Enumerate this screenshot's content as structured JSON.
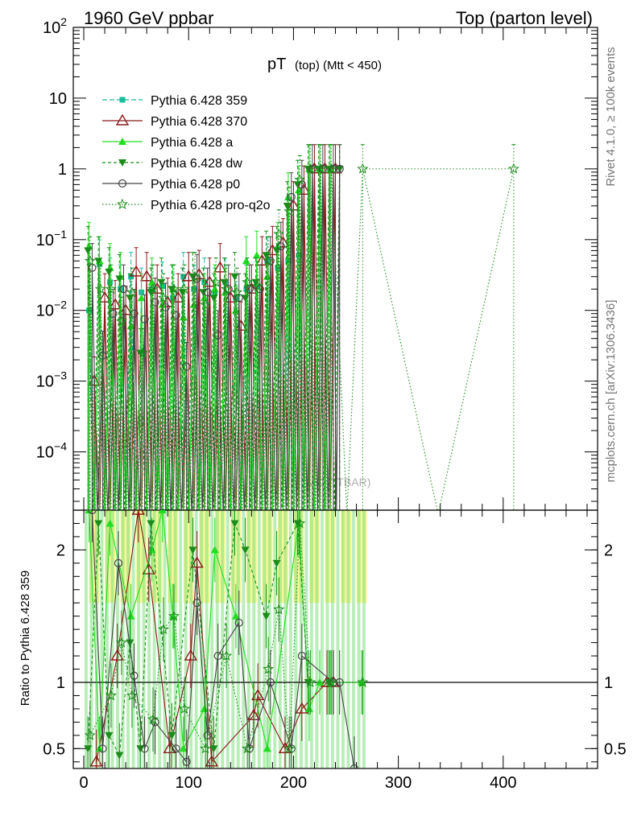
{
  "header": {
    "left": "1960 GeV ppbar",
    "right": "Top (parton level)"
  },
  "side_labels": {
    "rivet": "Rivet 4.1.0, ≥ 100k events",
    "mcplots": "mcplots.cern.ch [arXiv:1306.3436]"
  },
  "watermark": "(MC_TTBAR)",
  "chart_data": {
    "type": "line",
    "title": "pT (top) (Mtt < 450)",
    "title_main": "pT",
    "title_sub": "(top) (Mtt < 450)",
    "xlim": [
      -10,
      490
    ],
    "ylim": [
      1.5e-05,
      100
    ],
    "yscale": "log",
    "x_ticks": [
      0,
      100,
      200,
      300,
      400
    ],
    "x_tick_labels": [
      "0",
      "100",
      "200",
      "300",
      "400"
    ],
    "y_ticks": [
      {
        "value": 100,
        "label": "10",
        "sup": "2"
      },
      {
        "value": 10,
        "label": "10",
        "sup": ""
      },
      {
        "value": 1,
        "label": "1",
        "sup": ""
      },
      {
        "value": 0.1,
        "label": "10",
        "sup": "−1"
      },
      {
        "value": 0.01,
        "label": "10",
        "sup": "−2"
      },
      {
        "value": 0.001,
        "label": "10",
        "sup": "−3"
      },
      {
        "value": 0.0001,
        "label": "10",
        "sup": "−4"
      }
    ],
    "legend_position": "top-left",
    "series": [
      {
        "name": "Pythia 6.428 359",
        "color": "#1abc9c",
        "marker": "square",
        "dash": "6,3",
        "x": [
          5,
          15,
          25,
          35,
          45,
          55,
          65,
          75,
          85,
          95,
          105,
          115,
          125,
          135,
          145,
          155,
          165,
          175,
          185,
          195,
          205,
          215,
          225,
          235
        ],
        "y": [
          0.01,
          0.045,
          0.025,
          0.02,
          0.03,
          0.018,
          0.02,
          0.022,
          0.015,
          0.03,
          0.02,
          0.025,
          0.018,
          0.025,
          0.015,
          0.02,
          0.022,
          0.05,
          0.04,
          0.05,
          0.06,
          1,
          1,
          1
        ]
      },
      {
        "name": "Pythia 6.428 370",
        "color": "#8b1a1a",
        "marker": "triangle-open",
        "dash": "",
        "x": [
          10,
          20,
          30,
          40,
          50,
          60,
          70,
          80,
          90,
          100,
          110,
          120,
          130,
          140,
          150,
          160,
          170,
          180,
          190,
          200,
          210,
          220,
          230,
          240
        ],
        "y": [
          0.001,
          0.015,
          0.012,
          0.01,
          0.035,
          0.03,
          0.02,
          0.013,
          0.015,
          0.03,
          0.032,
          0.025,
          0.04,
          0.015,
          0.006,
          0.02,
          0.05,
          0.07,
          0.09,
          0.3,
          0.5,
          1,
          1,
          1
        ]
      },
      {
        "name": "Pythia 6.428 a",
        "color": "#22dd22",
        "marker": "triangle",
        "dash": "",
        "x": [
          5,
          15,
          25,
          35,
          45,
          55,
          65,
          75,
          85,
          95,
          105,
          115,
          125,
          135,
          145,
          155,
          165,
          175,
          185,
          195,
          205,
          215,
          225,
          235
        ],
        "y": [
          0.08,
          0.05,
          0.04,
          0.03,
          0.006,
          0.015,
          0.025,
          0.012,
          0.02,
          0.008,
          0.012,
          0.015,
          0.02,
          0.018,
          0.01,
          0.05,
          0.06,
          0.03,
          0.08,
          0.4,
          0.5,
          1,
          1,
          1
        ]
      },
      {
        "name": "Pythia 6.428 dw",
        "color": "#1a8c1a",
        "marker": "triangle-down",
        "dash": "4,3",
        "x": [
          4,
          14,
          24,
          34,
          44,
          54,
          64,
          74,
          84,
          94,
          104,
          114,
          124,
          134,
          144,
          154,
          164,
          174,
          184,
          194,
          204,
          214,
          224,
          234,
          244
        ],
        "y": [
          0.07,
          0.05,
          0.035,
          0.028,
          0.015,
          0.0025,
          0.018,
          0.025,
          0.02,
          0.018,
          0.03,
          0.018,
          0.015,
          0.025,
          0.03,
          0.015,
          0.025,
          0.06,
          0.07,
          0.3,
          0.6,
          1,
          1,
          1,
          1
        ]
      },
      {
        "name": "Pythia 6.428 p0",
        "color": "#444444",
        "marker": "circle-open",
        "dash": "",
        "x": [
          8,
          18,
          28,
          38,
          48,
          58,
          68,
          78,
          88,
          98,
          108,
          118,
          128,
          138,
          148,
          158,
          168,
          178,
          188,
          198,
          208,
          218,
          228,
          238,
          244
        ],
        "y": [
          0.04,
          0.0023,
          0.009,
          0.02,
          0.009,
          0.0075,
          0.013,
          0.011,
          0.0085,
          0.0016,
          0.028,
          0.018,
          0.0045,
          0.02,
          0.015,
          0.02,
          0.02,
          0.05,
          0.08,
          0.4,
          0.6,
          1,
          1,
          1,
          1
        ]
      },
      {
        "name": "Pythia 6.428 pro-q2o",
        "color": "#1a8c1a",
        "marker": "star",
        "dash": "1.5,2.5",
        "x": [
          6,
          16,
          26,
          36,
          46,
          56,
          66,
          76,
          86,
          96,
          106,
          116,
          126,
          136,
          146,
          156,
          166,
          176,
          186,
          196,
          206,
          216,
          226,
          236,
          266,
          410
        ],
        "y": [
          0.05,
          0.02,
          0.02,
          0.007,
          0.018,
          0.0025,
          0.02,
          0.015,
          0.02,
          0.02,
          0.03,
          0.012,
          0.025,
          0.02,
          0.018,
          0.025,
          0.022,
          0.05,
          0.12,
          0.25,
          0.7,
          1,
          1,
          1,
          1,
          1
        ]
      }
    ],
    "ratio": {
      "ylabel": "Ratio to Pythia 6.428 359",
      "ylim": [
        0.35,
        2.3
      ],
      "y_ticks": [
        0.5,
        1,
        2
      ],
      "y_tick_labels": [
        "0.5",
        "1",
        "2"
      ],
      "series": [
        {
          "name": "Pythia 6.428 370",
          "x": [
            12,
            32,
            52,
            62,
            82,
            102,
            108,
            122,
            162,
            166,
            192,
            208,
            232,
            238
          ],
          "y": [
            0.4,
            1.2,
            2.3,
            1.85,
            0.5,
            1.2,
            1.9,
            0.4,
            0.75,
            0.9,
            0.5,
            0.8,
            1,
            1
          ]
        },
        {
          "name": "Pythia 6.428 a",
          "x": [
            5,
            15,
            25,
            45,
            65,
            75,
            85,
            95,
            115,
            125,
            145,
            175,
            205,
            215,
            225,
            235,
            265
          ],
          "y": [
            2.3,
            0.5,
            2.2,
            1.5,
            2.0,
            2.3,
            1.5,
            0.5,
            0.8,
            2.0,
            1.5,
            0.5,
            2.2,
            0.8,
            1.0,
            1.0,
            1.0
          ]
        },
        {
          "name": "Pythia 6.428 dw",
          "x": [
            4,
            14,
            24,
            34,
            44,
            54,
            64,
            84,
            104,
            124,
            144,
            154,
            174,
            184,
            204,
            214,
            234
          ],
          "y": [
            0.5,
            2.2,
            0.6,
            0.45,
            1.3,
            0.5,
            2.2,
            0.6,
            2.0,
            0.5,
            2.2,
            2.0,
            1.5,
            1.9,
            2.2,
            1.0,
            1.0
          ]
        },
        {
          "name": "Pythia 6.428 p0",
          "x": [
            8,
            18,
            33,
            48,
            58,
            68,
            88,
            98,
            108,
            118,
            128,
            148,
            158,
            178,
            198,
            208,
            238,
            244,
            258
          ],
          "y": [
            2.3,
            0.5,
            1.9,
            1.05,
            0.5,
            0.7,
            0.5,
            0.4,
            1.6,
            0.6,
            1.2,
            1.45,
            0.5,
            1.0,
            0.5,
            1.2,
            1.0,
            1.0,
            0.35
          ]
        },
        {
          "name": "Pythia 6.428 pro-q2o",
          "x": [
            6,
            26,
            36,
            46,
            66,
            76,
            86,
            96,
            116,
            136,
            156,
            176,
            186,
            196,
            206,
            216,
            236,
            266
          ],
          "y": [
            0.6,
            0.9,
            1.3,
            0.9,
            0.72,
            1.4,
            1.5,
            0.8,
            0.5,
            1.2,
            0.5,
            1.1,
            1.55,
            0.5,
            2.2,
            1.0,
            1.0,
            1.0
          ]
        }
      ]
    }
  }
}
